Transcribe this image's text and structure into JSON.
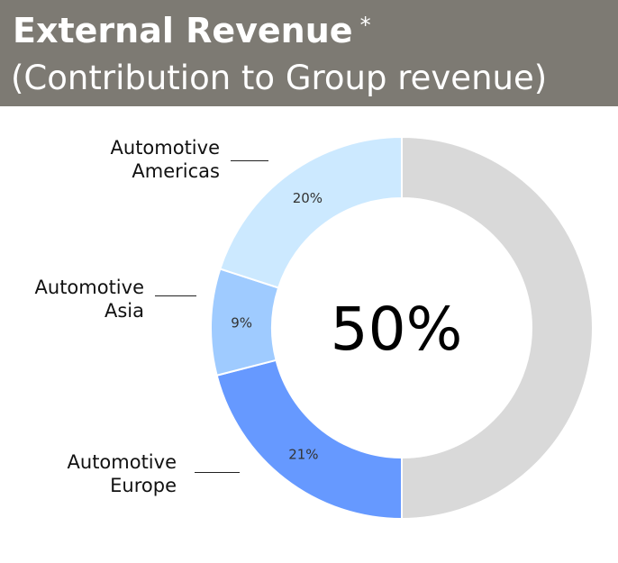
{
  "chart_data": {
    "type": "pie",
    "title": "External Revenue",
    "title_mark": "*",
    "subtitle": "(Contribution to Group revenue)",
    "center_label": "50%",
    "categories": [
      "Automotive Europe",
      "Automotive Asia",
      "Automotive Americas",
      ""
    ],
    "values": [
      21,
      9,
      20,
      50
    ],
    "value_labels": [
      "21%",
      "9%",
      "20%",
      ""
    ],
    "category_labels": {
      "europe": "Automotive\nEurope",
      "asia": "Automotive\nAsia",
      "americas": "Automotive\nAmericas"
    },
    "colors": [
      "#6699ff",
      "#9fcbff",
      "#cce9ff",
      "#d9d9d9"
    ],
    "hole": "donut",
    "legend": "none"
  }
}
